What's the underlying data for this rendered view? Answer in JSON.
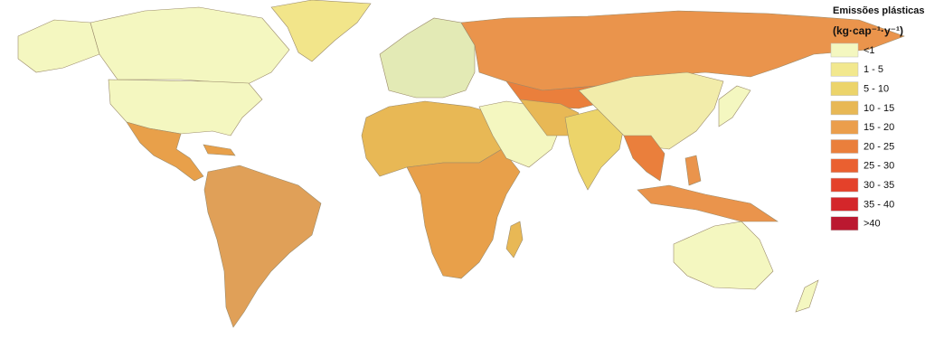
{
  "legend": {
    "title": "Emissões plásticas",
    "unit": "(kg·cap⁻¹·y⁻¹)",
    "items": [
      {
        "label": "<1",
        "color": "#f4f7c0"
      },
      {
        "label": "1 - 5",
        "color": "#f2e88e"
      },
      {
        "label": "5 - 10",
        "color": "#ecd46a"
      },
      {
        "label": "10 - 15",
        "color": "#e8b855"
      },
      {
        "label": "15 - 20",
        "color": "#eb9e4c"
      },
      {
        "label": "20 - 25",
        "color": "#ea7f3c"
      },
      {
        "label": "25 - 30",
        "color": "#ea6030"
      },
      {
        "label": "30 - 35",
        "color": "#e4412a"
      },
      {
        "label": "35 - 40",
        "color": "#d4262a"
      },
      {
        "label": ">40",
        "color": "#bb1830"
      }
    ]
  }
}
